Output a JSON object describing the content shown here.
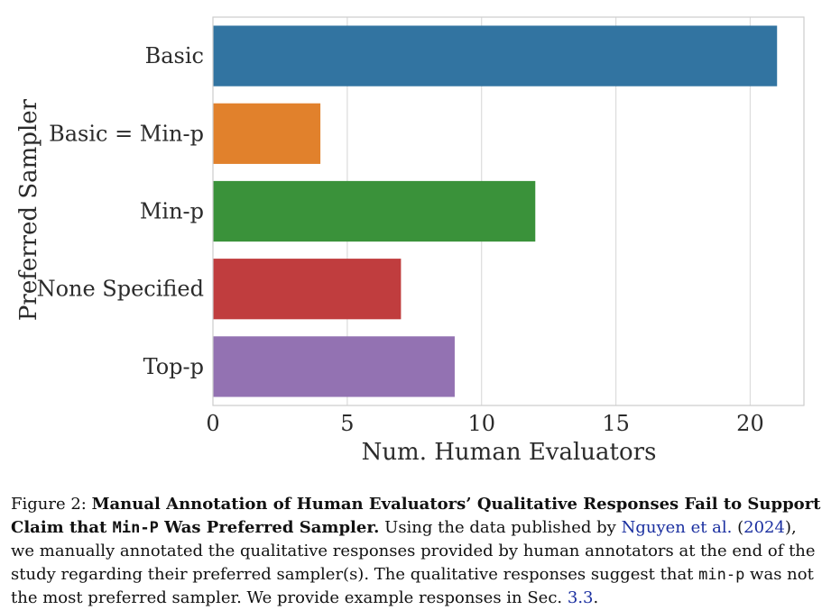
{
  "chart_data": {
    "type": "bar",
    "orientation": "horizontal",
    "categories": [
      "Basic",
      "Basic = Min-p",
      "Min-p",
      "None Specified",
      "Top-p"
    ],
    "values": [
      21,
      4,
      12,
      7,
      9
    ],
    "colors": [
      "#3274a1",
      "#e1812c",
      "#3a923a",
      "#c03d3e",
      "#9372b2"
    ],
    "xlabel": "Num. Human Evaluators",
    "ylabel": "Preferred Sampler",
    "xlim": [
      0,
      22
    ],
    "xticks": [
      "0",
      "5",
      "10",
      "15",
      "20"
    ],
    "grid": "vertical"
  },
  "caption": {
    "prefix": "Figure 2: ",
    "bold_1": "Manual Annotation of Human Evaluators’ Qualitative Responses Fail to Support Claim that ",
    "bold_code": "Min-P",
    "bold_2": " Was Preferred Sampler.",
    "text_1": " Using the data published by ",
    "cite_author": "Nguyen et al.",
    "cite_open": " (",
    "cite_year": "2024",
    "cite_close": "),",
    "text_2": " we manually annotated the qualitative responses provided by human annotators at the end of the study regarding their preferred sampler(s). The qualitative responses suggest that ",
    "code_2": "min-p",
    "text_3": " was not the most preferred sampler. We provide example responses in Sec. ",
    "sec_ref": "3.3",
    "text_end": "."
  }
}
